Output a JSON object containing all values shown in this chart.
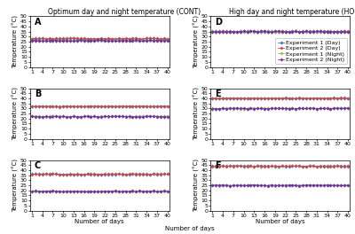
{
  "title_left": "Optimum day and night temperature (CONT)",
  "title_right": "High day and night temperature (HONT)",
  "xlabel": "Number of days",
  "ylabel": "Temperature (°C)",
  "days": [
    1,
    2,
    3,
    4,
    5,
    6,
    7,
    8,
    9,
    10,
    11,
    12,
    13,
    14,
    15,
    16,
    17,
    18,
    19,
    20,
    21,
    22,
    23,
    24,
    25,
    26,
    27,
    28,
    29,
    30,
    31,
    32,
    33,
    34,
    35,
    36,
    37,
    38,
    39,
    40
  ],
  "xticks": [
    1,
    4,
    7,
    10,
    13,
    16,
    19,
    22,
    25,
    28,
    31,
    34,
    37,
    40
  ],
  "yticks": [
    0,
    5,
    10,
    15,
    20,
    25,
    30,
    35,
    40,
    45,
    50
  ],
  "panels": {
    "A": {
      "day1": 28,
      "day2": 28,
      "night1": 26,
      "night2": 26
    },
    "B": {
      "day1": 32,
      "day2": 32,
      "night1": 22,
      "night2": 22
    },
    "C": {
      "day1": 36,
      "day2": 36,
      "night1": 19,
      "night2": 19
    },
    "D": {
      "day1": 35,
      "day2": 35,
      "night1": 35,
      "night2": 35
    },
    "E": {
      "day1": 40,
      "day2": 40,
      "night1": 30,
      "night2": 30
    },
    "F": {
      "day1": 44,
      "day2": 44,
      "night1": 25,
      "night2": 25
    }
  },
  "noise_scale": 0.4,
  "colors": {
    "exp1_day": "#4472c4",
    "exp2_day": "#c0504d",
    "exp1_night": "#9bbb59",
    "exp2_night": "#7030a0"
  },
  "legend_labels": [
    "Experiment 1 (Day)",
    "Experiment 2 (Day)",
    "Experiment 1 (Night)",
    "Experiment 2 (Night)"
  ],
  "marker": "D",
  "markersize": 1.8,
  "linewidth": 0.6,
  "bg_color": "#ffffff",
  "title_fontsize": 5.5,
  "label_fontsize": 5,
  "tick_fontsize": 4.5,
  "legend_fontsize": 4.5,
  "panel_label_fontsize": 7
}
